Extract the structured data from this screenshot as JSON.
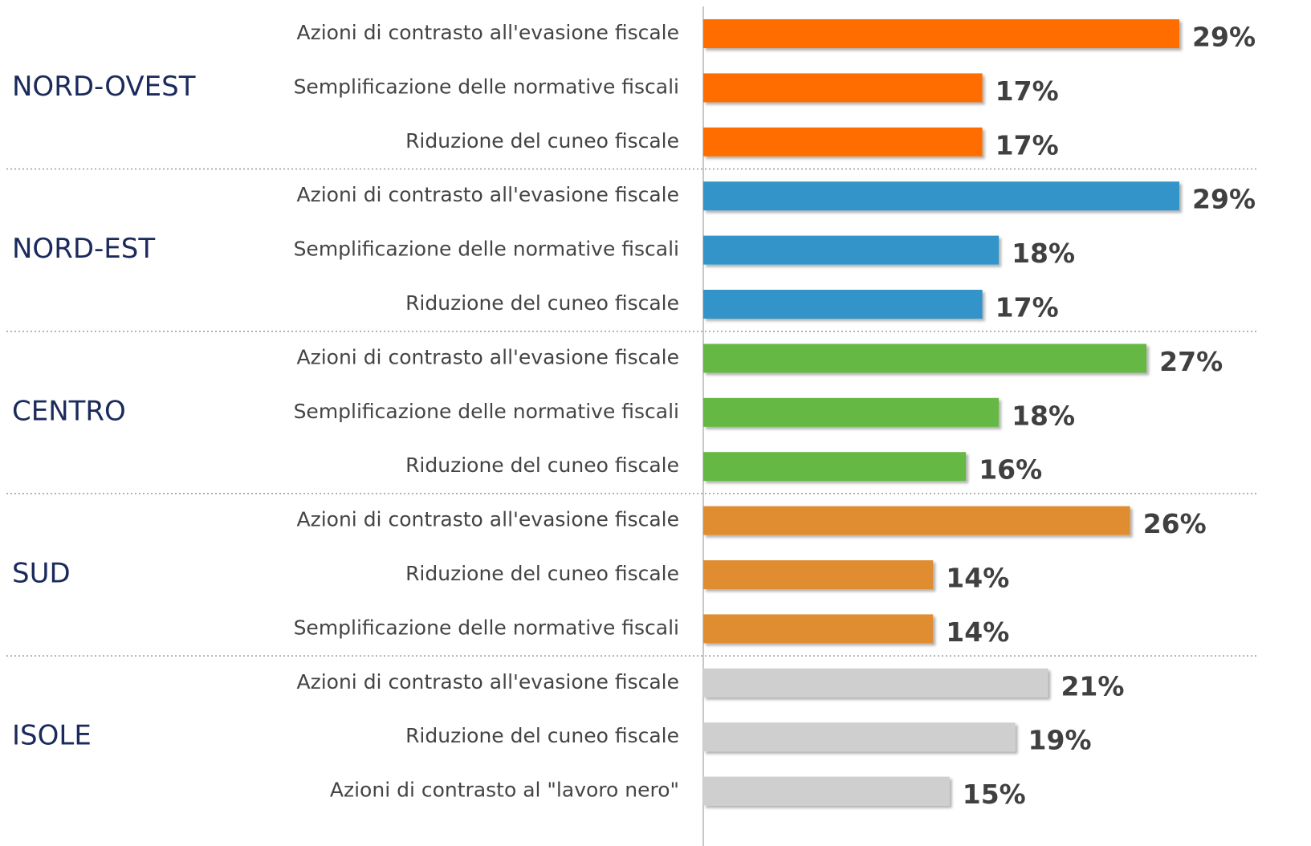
{
  "chart_data": {
    "type": "bar",
    "orientation": "horizontal",
    "groups": [
      {
        "name": "NORD-OVEST",
        "color": "#ff6d00",
        "categories": [
          "Azioni di contrasto all'evasione fiscale",
          "Semplificazione delle normative fiscali",
          "Riduzione del cuneo fiscale"
        ],
        "values": [
          29,
          17,
          17
        ],
        "value_labels": [
          "29%",
          "17%",
          "17%"
        ]
      },
      {
        "name": "NORD-EST",
        "color": "#3094c8",
        "categories": [
          "Azioni di contrasto all'evasione fiscale",
          "Semplificazione delle normative fiscali",
          "Riduzione del cuneo fiscale"
        ],
        "values": [
          29,
          18,
          17
        ],
        "value_labels": [
          "29%",
          "18%",
          "17%"
        ]
      },
      {
        "name": "CENTRO",
        "color": "#66b845",
        "categories": [
          "Azioni di contrasto all'evasione fiscale",
          "Semplificazione delle normative fiscali",
          "Riduzione del cuneo fiscale"
        ],
        "values": [
          27,
          18,
          16
        ],
        "value_labels": [
          "27%",
          "18%",
          "16%"
        ]
      },
      {
        "name": "SUD",
        "color": "#e08d33",
        "categories": [
          "Azioni di contrasto all'evasione fiscale",
          "Riduzione del cuneo fiscale",
          "Semplificazione delle normative fiscali"
        ],
        "values": [
          26,
          14,
          14
        ],
        "value_labels": [
          "26%",
          "14%",
          "14%"
        ]
      },
      {
        "name": "ISOLE",
        "color": "#d0cfcf",
        "categories": [
          "Azioni di contrasto all'evasione fiscale",
          "Riduzione del cuneo fiscale",
          "Azioni di contrasto al \"lavoro nero\""
        ],
        "values": [
          21,
          19,
          15
        ],
        "value_labels": [
          "21%",
          "19%",
          "15%"
        ]
      }
    ]
  }
}
